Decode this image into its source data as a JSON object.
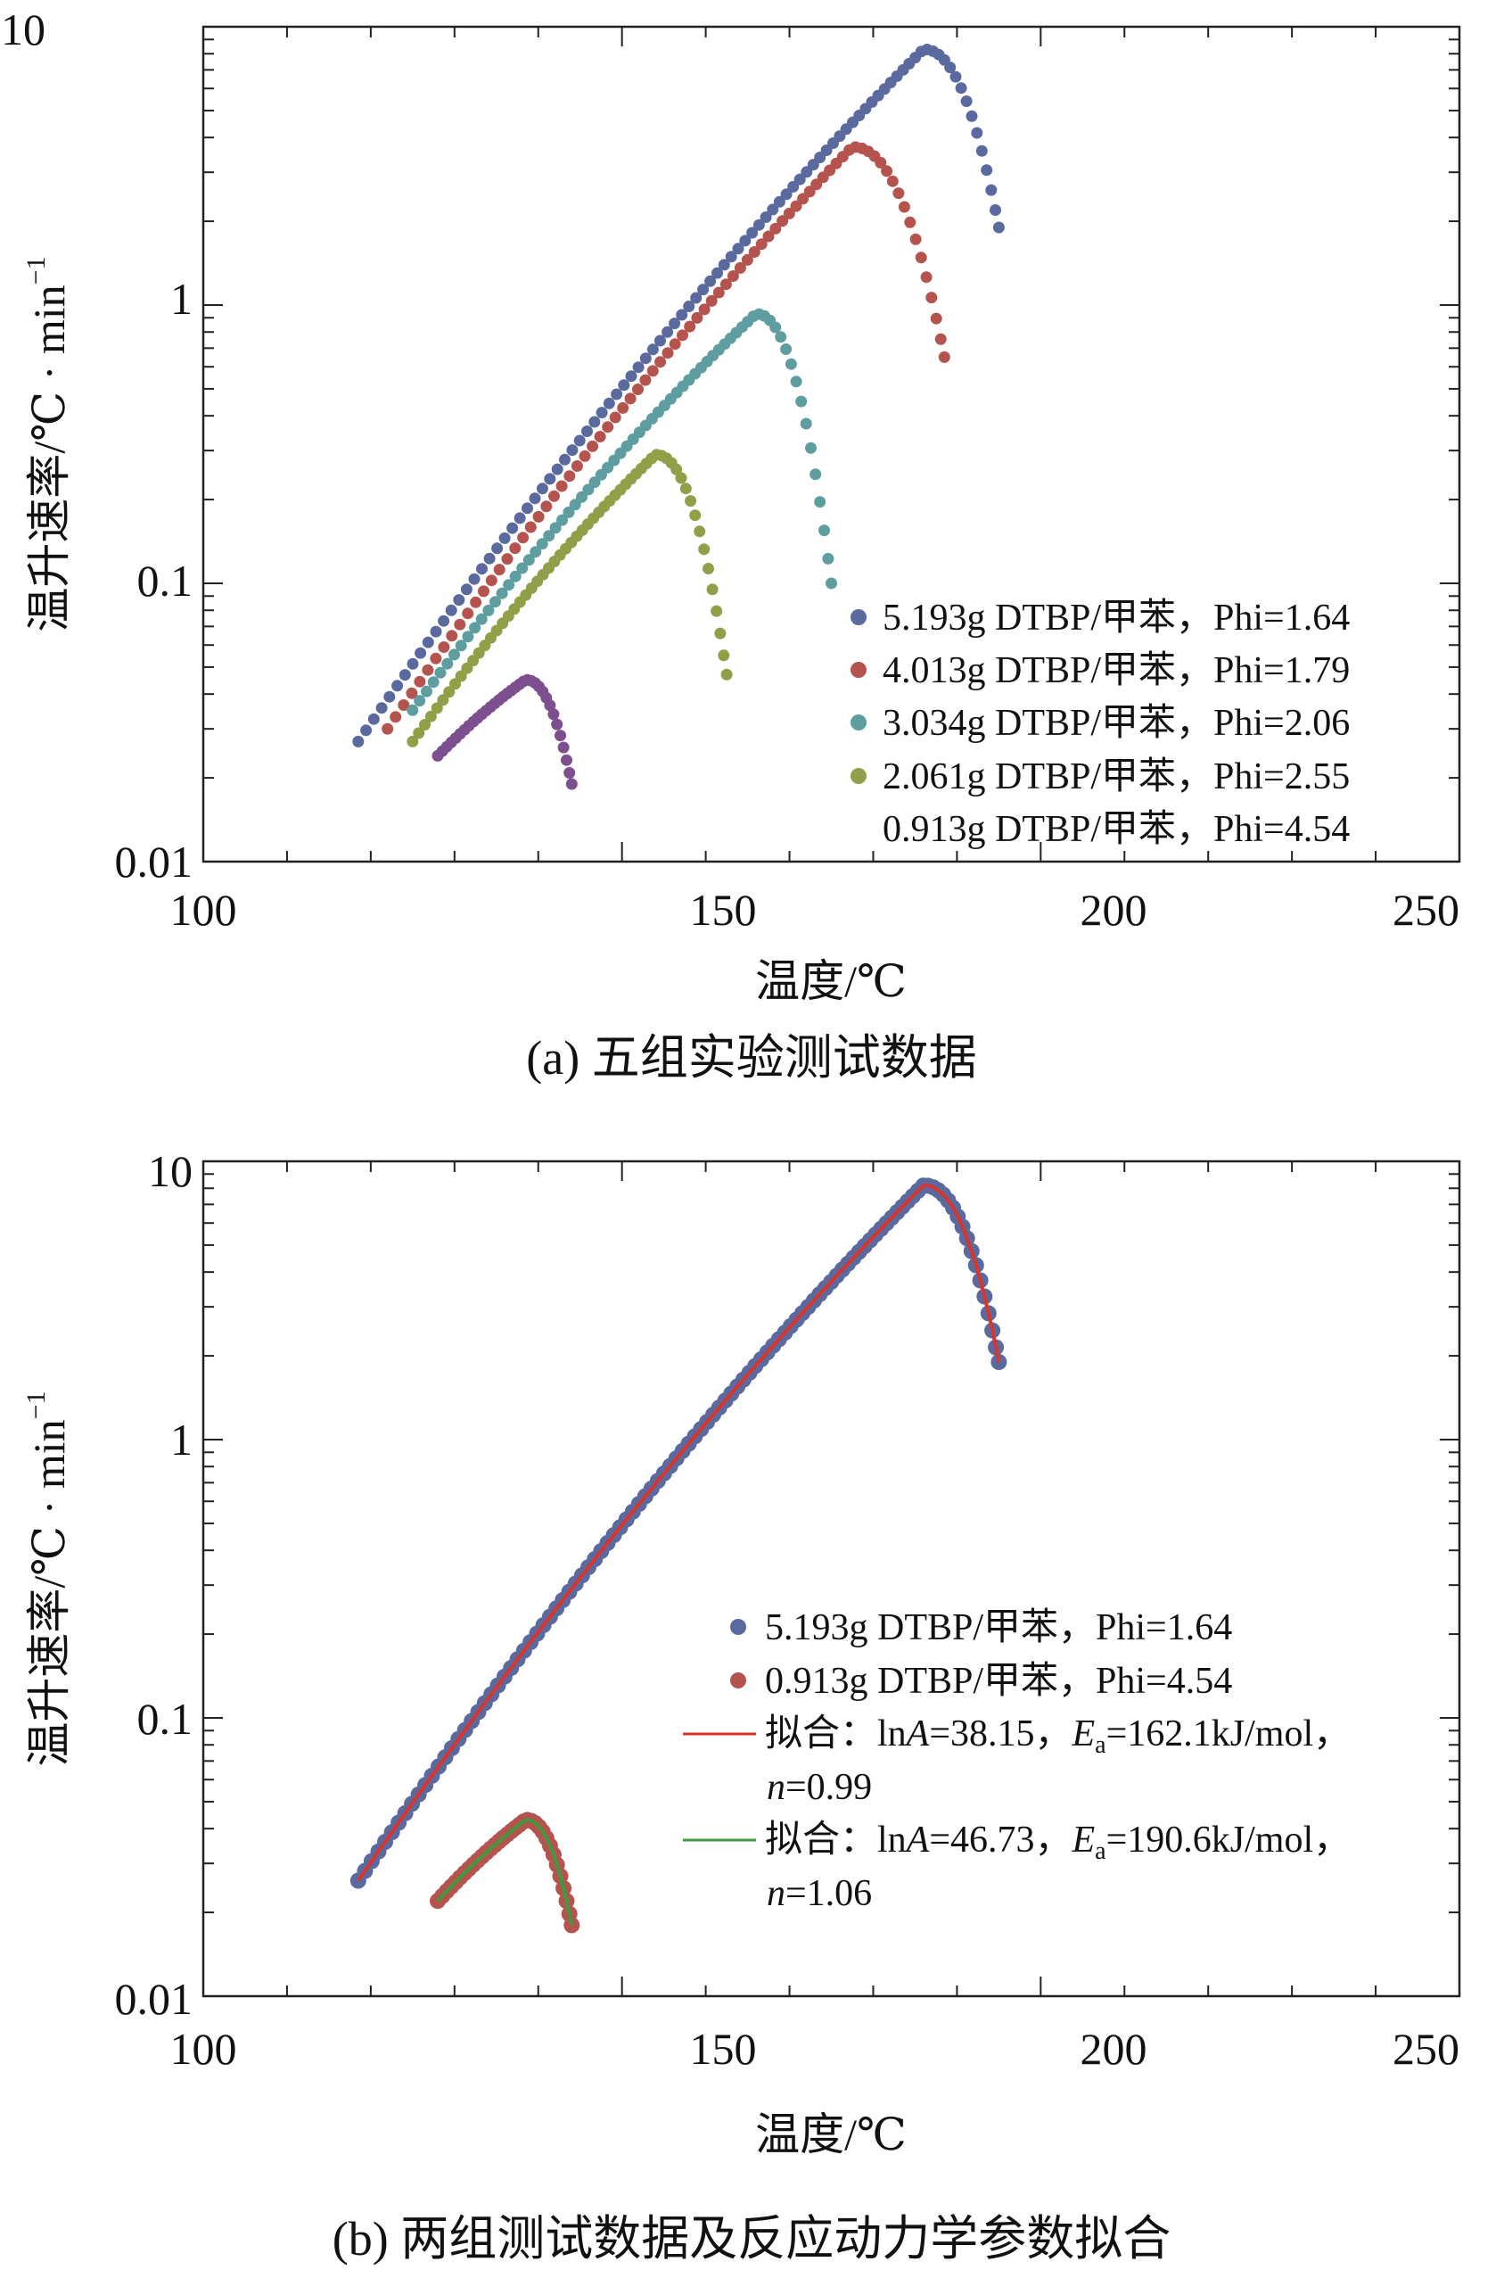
{
  "chart_data": [
    {
      "id": "a",
      "type": "scatter",
      "title": "",
      "caption": "(a) 五组实验测试数据",
      "xlabel": "温度/℃",
      "ylabel_main": "温升速率/℃ · min",
      "ylabel_sup": "−1",
      "xlim": [
        100,
        250
      ],
      "ylim": [
        0.01,
        10
      ],
      "yscale": "log",
      "xticks": [
        100,
        150,
        200,
        250
      ],
      "xtick_labels": [
        "100",
        "150",
        "200",
        "250"
      ],
      "yticks": [
        0.01,
        0.1,
        1,
        10
      ],
      "ytick_labels": [
        "0.01",
        "0.1",
        "1",
        "10"
      ],
      "legend_position": "bottom-right",
      "series": [
        {
          "name": "5.193g DTBP/甲苯，Phi=1.64",
          "color": "#5b6a9e",
          "marker": true,
          "T0": 118.5,
          "Tp": 186,
          "Tend": 195,
          "R0": 0.027,
          "Rp": 8.3,
          "Rend": 1.9,
          "points": 95
        },
        {
          "name": "4.013g DTBP/甲苯，Phi=1.79",
          "color": "#b5534f",
          "marker": true,
          "T0": 122,
          "Tp": 177.5,
          "Tend": 188.5,
          "R0": 0.03,
          "Rp": 3.7,
          "Rend": 0.65,
          "points": 80
        },
        {
          "name": "3.034g DTBP/甲苯，Phi=2.06",
          "color": "#5f9ea0",
          "marker": true,
          "T0": 125,
          "Tp": 166,
          "Tend": 175,
          "R0": 0.035,
          "Rp": 0.93,
          "Rend": 0.1,
          "points": 70
        },
        {
          "name": "2.061g DTBP/甲苯，Phi=2.55",
          "color": "#8fa048",
          "marker": true,
          "T0": 125,
          "Tp": 154,
          "Tend": 162.5,
          "R0": 0.027,
          "Rp": 0.29,
          "Rend": 0.047,
          "points": 60
        },
        {
          "name": "0.913g DTBP/甲苯，Phi=4.54",
          "color": "#7d4f8f",
          "marker": false,
          "T0": 128,
          "Tp": 138.5,
          "Tend": 144,
          "R0": 0.024,
          "Rp": 0.045,
          "Rend": 0.019,
          "points": 35
        }
      ]
    },
    {
      "id": "b",
      "type": "scatter",
      "title": "",
      "caption": "(b) 两组测试数据及反应动力学参数拟合",
      "xlabel": "温度/℃",
      "ylabel_main": "温升速率/℃ · min",
      "ylabel_sup": "−1",
      "xlim": [
        100,
        250
      ],
      "ylim": [
        0.01,
        10
      ],
      "yscale": "log",
      "xticks": [
        100,
        150,
        200,
        250
      ],
      "xtick_labels": [
        "100",
        "150",
        "200",
        "250"
      ],
      "yticks": [
        0.01,
        0.1,
        1,
        10
      ],
      "ytick_labels": [
        "0.01",
        "0.1",
        "1",
        "10"
      ],
      "legend_position": "bottom-right",
      "series": [
        {
          "name": "5.193g DTBP/甲苯，Phi=1.64",
          "color": "#5b6a9e",
          "kind": "marker",
          "T0": 118.5,
          "Tp": 186,
          "Tend": 195,
          "R0": 0.026,
          "Rp": 8.2,
          "Rend": 1.9,
          "points": 110
        },
        {
          "name": "0.913g DTBP/甲苯，Phi=4.54",
          "color": "#b5534f",
          "kind": "marker",
          "T0": 128,
          "Tp": 138.5,
          "Tend": 144,
          "R0": 0.022,
          "Rp": 0.043,
          "Rend": 0.018,
          "points": 35
        }
      ],
      "fits": [
        {
          "label": "拟合：lnA=38.15，Ea=162.1kJ/mol，",
          "label_cont": "n=0.99",
          "lnA_prefix": "拟合：ln",
          "A": "A",
          "lnA_value": "=38.15，",
          "E": "E",
          "E_sub": "a",
          "Ea_value": "=162.1kJ/mol，",
          "n": "n",
          "n_value": "=0.99",
          "color": "#d8362d",
          "fits_series": 0
        },
        {
          "label": "拟合：lnA=46.73，Ea=190.6kJ/mol，",
          "label_cont": "n=1.06",
          "lnA_prefix": "拟合：ln",
          "A": "A",
          "lnA_value": "=46.73，",
          "E": "E",
          "E_sub": "a",
          "Ea_value": "=190.6kJ/mol，",
          "n": "n",
          "n_value": "=1.06",
          "color": "#3f9a3f",
          "fits_series": 1
        }
      ]
    }
  ]
}
